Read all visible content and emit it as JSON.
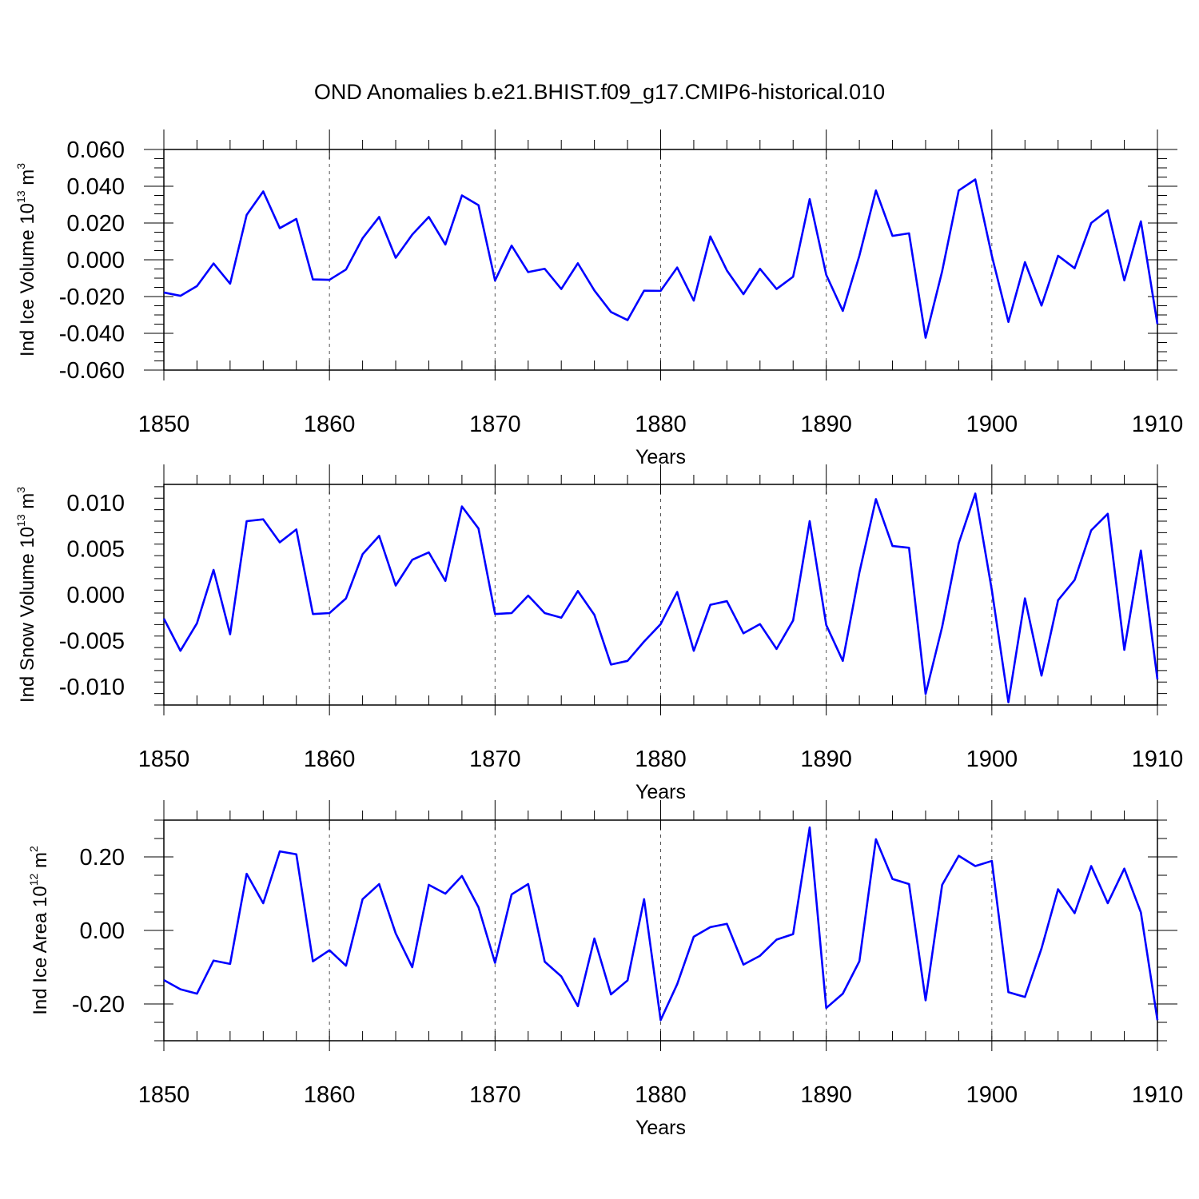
{
  "title": "OND Anomalies b.e21.BHIST.f09_g17.CMIP6-historical.010",
  "line_color": "#0000ff",
  "chart_data": [
    {
      "type": "line",
      "ylabel_main": "Ind Ice Volume 10",
      "ylabel_sup": "13",
      "ylabel_unit": " m",
      "ylabel_unit_sup": "3",
      "xlabel": "Years",
      "xlim": [
        1850,
        1910
      ],
      "ylim": [
        -0.06,
        0.06
      ],
      "xticks": [
        "1850",
        "1860",
        "1870",
        "1880",
        "1890",
        "1900",
        "1910"
      ],
      "yticks": [
        "0.060",
        "0.040",
        "0.020",
        "0.000",
        "-0.020",
        "-0.040",
        "-0.060"
      ],
      "x_start": 1850,
      "values": [
        -0.0178,
        -0.0196,
        -0.0143,
        -0.002,
        -0.013,
        0.0244,
        0.0372,
        0.0172,
        0.0222,
        -0.0107,
        -0.0109,
        -0.0053,
        0.0117,
        0.0233,
        0.0011,
        0.0137,
        0.0233,
        0.0083,
        0.035,
        0.0297,
        -0.0113,
        0.0077,
        -0.0067,
        -0.0049,
        -0.0159,
        -0.0019,
        -0.0167,
        -0.0284,
        -0.0328,
        -0.0168,
        -0.0169,
        -0.0042,
        -0.0222,
        0.0127,
        -0.0058,
        -0.0187,
        -0.0049,
        -0.0159,
        -0.0092,
        0.033,
        -0.0082,
        -0.0278,
        0.0022,
        0.0377,
        0.013,
        0.0144,
        -0.0424,
        -0.0062,
        0.0377,
        0.0437,
        0.0022,
        -0.0338,
        -0.0013,
        -0.0249,
        0.0022,
        -0.0046,
        0.02,
        0.0269,
        -0.0112,
        0.0209,
        -0.035
      ]
    },
    {
      "type": "line",
      "ylabel_main": "Ind Snow Volume 10",
      "ylabel_sup": "13",
      "ylabel_unit": " m",
      "ylabel_unit_sup": "3",
      "xlabel": "Years",
      "xlim": [
        1850,
        1910
      ],
      "ylim": [
        -0.012,
        0.012
      ],
      "xticks": [
        "1850",
        "1860",
        "1870",
        "1880",
        "1890",
        "1900",
        "1910"
      ],
      "yticks": [
        "0.010",
        "0.005",
        "0.000",
        "-0.005",
        "-0.010"
      ],
      "x_start": 1850,
      "values": [
        -0.0026,
        -0.0061,
        -0.0031,
        0.0027,
        -0.0043,
        0.008,
        0.0082,
        0.0057,
        0.0071,
        -0.0021,
        -0.002,
        -0.0004,
        0.0044,
        0.0064,
        0.001,
        0.0038,
        0.0046,
        0.0015,
        0.0096,
        0.0072,
        -0.0021,
        -0.002,
        -0.0001,
        -0.002,
        -0.0025,
        0.0004,
        -0.0022,
        -0.0076,
        -0.0072,
        -0.0051,
        -0.0032,
        0.0003,
        -0.0061,
        -0.0011,
        -0.0007,
        -0.0042,
        -0.0032,
        -0.0059,
        -0.0028,
        0.008,
        -0.0033,
        -0.0072,
        0.0024,
        0.0104,
        0.0053,
        0.0051,
        -0.0108,
        -0.0035,
        0.0056,
        0.011,
        0.0005,
        -0.0117,
        -0.0004,
        -0.0088,
        -0.0006,
        0.0016,
        0.007,
        0.0088,
        -0.006,
        0.0048,
        -0.0092
      ]
    },
    {
      "type": "line",
      "ylabel_main": "Ind Ice Area 10",
      "ylabel_sup": "12",
      "ylabel_unit": " m",
      "ylabel_unit_sup": "2",
      "xlabel": "Years",
      "xlim": [
        1850,
        1910
      ],
      "ylim": [
        -0.3,
        0.3
      ],
      "xticks": [
        "1850",
        "1860",
        "1870",
        "1880",
        "1890",
        "1900",
        "1910"
      ],
      "yticks": [
        "0.20",
        "0.00",
        "-0.20"
      ],
      "x_start": 1850,
      "values": [
        -0.135,
        -0.16,
        -0.172,
        -0.082,
        -0.091,
        0.154,
        0.074,
        0.215,
        0.207,
        -0.084,
        -0.054,
        -0.096,
        0.085,
        0.126,
        -0.008,
        -0.1,
        0.124,
        0.1,
        0.148,
        0.063,
        -0.088,
        0.098,
        0.126,
        -0.085,
        -0.125,
        -0.206,
        -0.022,
        -0.174,
        -0.136,
        0.085,
        -0.244,
        -0.146,
        -0.017,
        0.009,
        0.018,
        -0.093,
        -0.069,
        -0.025,
        -0.01,
        0.28,
        -0.211,
        -0.172,
        -0.084,
        0.248,
        0.14,
        0.126,
        -0.19,
        0.124,
        0.203,
        0.175,
        0.189,
        -0.168,
        -0.181,
        -0.049,
        0.112,
        0.047,
        0.175,
        0.074,
        0.168,
        0.049,
        -0.244
      ]
    }
  ]
}
